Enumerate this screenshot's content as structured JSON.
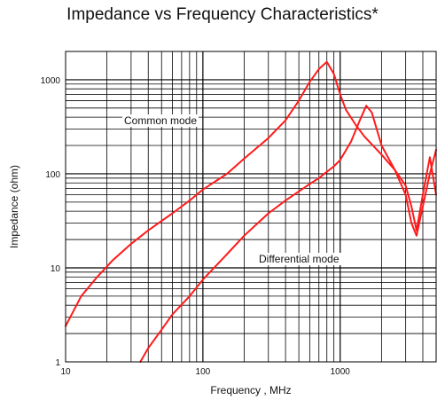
{
  "chart_data": {
    "type": "line",
    "title": "Impedance vs Frequency Characteristics*",
    "xlabel": "Frequency , MHz",
    "ylabel": "Impedance (ohm)",
    "xscale": "log",
    "yscale": "log",
    "xlim": [
      10,
      5000
    ],
    "ylim": [
      1,
      2000
    ],
    "x_ticks": [
      "10",
      "100",
      "1000"
    ],
    "y_ticks": [
      "1",
      "10",
      "100",
      "1000"
    ],
    "grid": true,
    "series": [
      {
        "name": "Common mode",
        "color": "#ff1a1a",
        "x": [
          10,
          13,
          17,
          22,
          30,
          40,
          60,
          80,
          100,
          150,
          200,
          300,
          400,
          500,
          600,
          700,
          800,
          900,
          1000,
          1100,
          1300,
          1500,
          2000,
          2500,
          3000,
          3300,
          3600,
          4000,
          4500,
          5000
        ],
        "y": [
          2.4,
          5,
          8,
          12,
          18,
          25,
          38,
          52,
          68,
          100,
          145,
          240,
          370,
          600,
          950,
          1300,
          1550,
          1150,
          700,
          480,
          330,
          250,
          160,
          110,
          75,
          45,
          25,
          60,
          150,
          60
        ]
      },
      {
        "name": "Differential mode",
        "color": "#ff1a1a",
        "x": [
          35,
          40,
          50,
          60,
          80,
          100,
          150,
          200,
          300,
          400,
          500,
          600,
          700,
          800,
          900,
          1000,
          1200,
          1400,
          1550,
          1700,
          2000,
          2500,
          3000,
          3300,
          3600,
          4000,
          4500,
          5000
        ],
        "y": [
          1,
          1.4,
          2.2,
          3.2,
          5,
          7.5,
          14,
          22,
          38,
          52,
          65,
          78,
          90,
          105,
          120,
          140,
          220,
          380,
          530,
          450,
          200,
          110,
          60,
          30,
          22,
          45,
          100,
          180
        ]
      }
    ],
    "annotations": [
      "Common mode",
      "Differential mode"
    ]
  }
}
